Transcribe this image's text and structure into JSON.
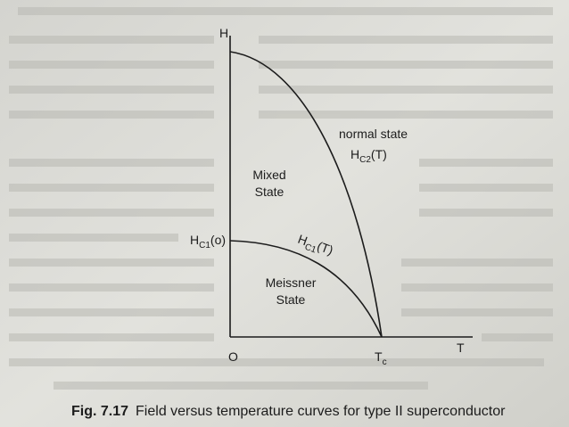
{
  "figure": {
    "y_axis_label": "H",
    "origin_label": "O",
    "x_axis_label": "T",
    "tc_label": {
      "base": "T",
      "sub": "c"
    },
    "normal_region": "normal state",
    "hc2_label": {
      "base": "H",
      "sub": "C2",
      "rest": "(T)"
    },
    "mixed_region": [
      "Mixed",
      "State"
    ],
    "hc1_zero_label": {
      "base": "H",
      "sub": "C1",
      "rest": "(o)"
    },
    "hc1_label": {
      "base": "H",
      "sub": "C1",
      "rest": "(T)"
    },
    "meissner_region": [
      "Meissner",
      "State"
    ]
  },
  "caption": {
    "number": "Fig. 7.17",
    "text": "Field versus temperature curves for type II superconductor"
  }
}
